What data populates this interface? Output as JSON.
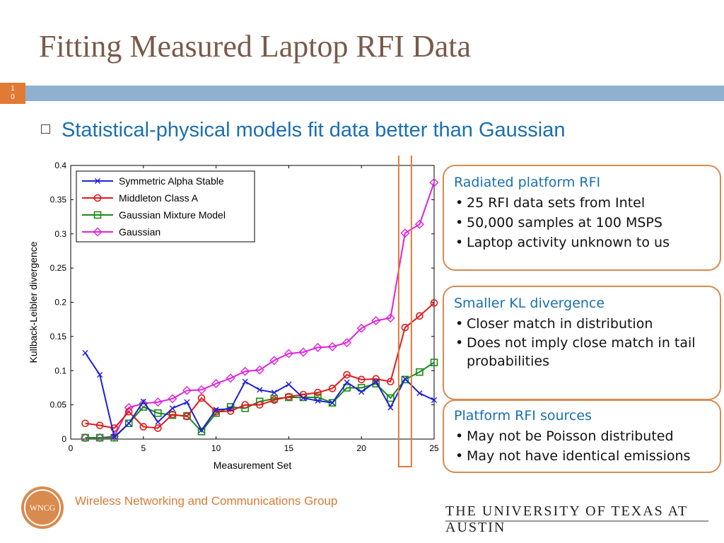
{
  "slide": {
    "title": "Fitting Measured Laptop RFI Data",
    "slide_number": "1\n0",
    "bullet": "Statistical-physical models fit data better than Gaussian",
    "colors": {
      "title": "#7a5a4a",
      "band": "#8fb0cf",
      "accent": "#e07a35",
      "blue_text": "#1a6fb0"
    }
  },
  "callouts": [
    {
      "head": "Radiated platform RFI",
      "items": [
        "25 RFI data sets from Intel",
        "50,000 samples at 100 MSPS",
        "Laptop activity unknown to us"
      ]
    },
    {
      "head": "Smaller KL divergence",
      "items": [
        "Closer match in distribution",
        "Does not imply close match in tail probabilities"
      ]
    },
    {
      "head": "Platform RFI sources",
      "items": [
        "May not be Poisson distributed",
        "May not have identical emissions"
      ]
    }
  ],
  "footer": {
    "group": "Wireless Networking and Communications Group",
    "logo_text": "WNCG",
    "university": "THE UNIVERSITY OF TEXAS AT AUSTIN"
  },
  "chart_data": {
    "type": "line",
    "title": "",
    "xlabel": "Measurement Set",
    "ylabel": "Kullback-Leibler divergence",
    "xlim": [
      0,
      25
    ],
    "ylim": [
      0,
      0.4
    ],
    "xticks": [
      0,
      5,
      10,
      15,
      20,
      25
    ],
    "yticks": [
      0,
      0.05,
      0.1,
      0.15,
      0.2,
      0.25,
      0.3,
      0.35,
      0.4
    ],
    "legend_position": "top-left",
    "highlight_x": 23,
    "x": [
      1,
      2,
      3,
      4,
      5,
      6,
      7,
      8,
      9,
      10,
      11,
      12,
      13,
      14,
      15,
      16,
      17,
      18,
      19,
      20,
      21,
      22,
      23,
      24,
      25
    ],
    "series": [
      {
        "name": "Symmetric Alpha Stable",
        "color": "#1f1fd6",
        "marker": "x",
        "values": [
          0.126,
          0.094,
          0.003,
          0.023,
          0.055,
          0.025,
          0.045,
          0.054,
          0.013,
          0.043,
          0.044,
          0.084,
          0.072,
          0.068,
          0.08,
          0.06,
          0.056,
          0.053,
          0.083,
          0.069,
          0.084,
          0.046,
          0.088,
          0.067,
          0.057
        ]
      },
      {
        "name": "Middleton Class A",
        "color": "#e01a1a",
        "marker": "circle",
        "values": [
          0.023,
          0.02,
          0.016,
          0.04,
          0.018,
          0.016,
          0.036,
          0.033,
          0.06,
          0.04,
          0.041,
          0.05,
          0.05,
          0.057,
          0.062,
          0.065,
          0.068,
          0.074,
          0.094,
          0.087,
          0.088,
          0.084,
          0.163,
          0.18,
          0.199
        ]
      },
      {
        "name": "Gaussian Mixture Model",
        "color": "#1a8a1a",
        "marker": "square",
        "values": [
          0.002,
          0.002,
          0.002,
          0.023,
          0.047,
          0.038,
          0.035,
          0.034,
          0.011,
          0.038,
          0.047,
          0.045,
          0.055,
          0.059,
          0.061,
          0.061,
          0.061,
          0.053,
          0.075,
          0.075,
          0.081,
          0.06,
          0.087,
          0.098,
          0.112
        ]
      },
      {
        "name": "Gaussian",
        "color": "#e020e0",
        "marker": "diamond",
        "values": [
          0.002,
          0.002,
          0.004,
          0.046,
          0.052,
          0.054,
          0.059,
          0.071,
          0.072,
          0.081,
          0.089,
          0.099,
          0.101,
          0.115,
          0.125,
          0.127,
          0.134,
          0.135,
          0.141,
          0.162,
          0.173,
          0.177,
          0.301,
          0.314,
          0.375
        ]
      }
    ]
  }
}
